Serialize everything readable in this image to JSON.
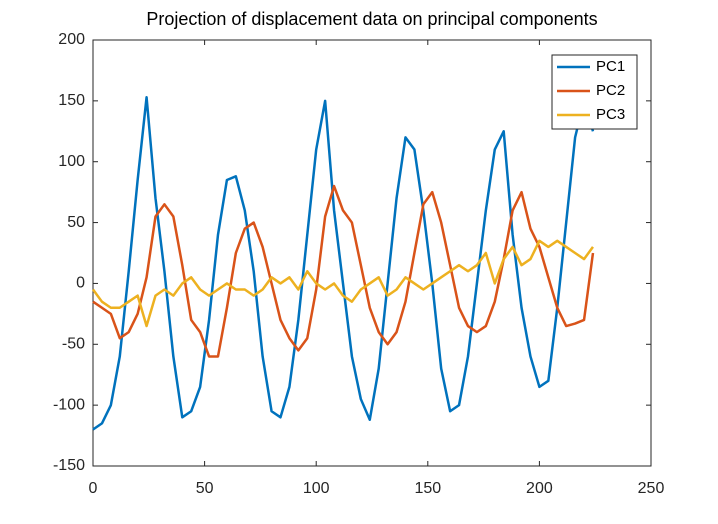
{
  "chart_data": {
    "type": "line",
    "title": "Projection of displacement data on principal components",
    "x": [
      0,
      4,
      8,
      12,
      16,
      20,
      24,
      28,
      32,
      36,
      40,
      44,
      48,
      52,
      56,
      60,
      64,
      68,
      72,
      76,
      80,
      84,
      88,
      92,
      96,
      100,
      104,
      108,
      112,
      116,
      120,
      124,
      128,
      132,
      136,
      140,
      144,
      148,
      152,
      156,
      160,
      164,
      168,
      172,
      176,
      180,
      184,
      188,
      192,
      196,
      200,
      204,
      208,
      212,
      216,
      220,
      224
    ],
    "series": [
      {
        "name": "PC1",
        "color": "#0072BD",
        "values": [
          -120,
          -115,
          -100,
          -60,
          10,
          85,
          153,
          70,
          10,
          -60,
          -110,
          -105,
          -85,
          -30,
          40,
          85,
          88,
          60,
          10,
          -60,
          -105,
          -110,
          -85,
          -30,
          40,
          110,
          150,
          60,
          0,
          -60,
          -95,
          -112,
          -70,
          0,
          70,
          120,
          110,
          60,
          0,
          -70,
          -105,
          -100,
          -60,
          0,
          60,
          110,
          125,
          40,
          -20,
          -60,
          -85,
          -80,
          -20,
          50,
          120,
          150,
          125
        ]
      },
      {
        "name": "PC2",
        "color": "#D95319",
        "values": [
          -15,
          -20,
          -25,
          -45,
          -40,
          -25,
          5,
          55,
          65,
          55,
          15,
          -30,
          -40,
          -60,
          -60,
          -20,
          25,
          45,
          50,
          30,
          0,
          -30,
          -45,
          -55,
          -45,
          -5,
          55,
          80,
          60,
          50,
          15,
          -20,
          -40,
          -50,
          -40,
          -15,
          25,
          65,
          75,
          50,
          15,
          -20,
          -35,
          -40,
          -35,
          -15,
          20,
          60,
          75,
          45,
          30,
          5,
          -20,
          -35,
          -33,
          -30,
          25
        ]
      },
      {
        "name": "PC3",
        "color": "#EDB120",
        "values": [
          -5,
          -15,
          -20,
          -20,
          -15,
          -10,
          -35,
          -10,
          -5,
          -10,
          0,
          5,
          -5,
          -10,
          -5,
          0,
          -5,
          -5,
          -10,
          -5,
          5,
          0,
          5,
          -5,
          10,
          0,
          -5,
          0,
          -10,
          -15,
          -5,
          0,
          5,
          -10,
          -5,
          5,
          0,
          -5,
          0,
          5,
          10,
          15,
          10,
          15,
          25,
          0,
          20,
          30,
          15,
          20,
          35,
          30,
          35,
          30,
          25,
          20,
          30
        ]
      }
    ],
    "xlim": [
      0,
      250
    ],
    "xticks": [
      0,
      50,
      100,
      150,
      200,
      250
    ],
    "ylim": [
      -150,
      200
    ],
    "yticks": [
      -150,
      -100,
      -50,
      0,
      50,
      100,
      150,
      200
    ],
    "grid": false,
    "legend": "northeast"
  }
}
